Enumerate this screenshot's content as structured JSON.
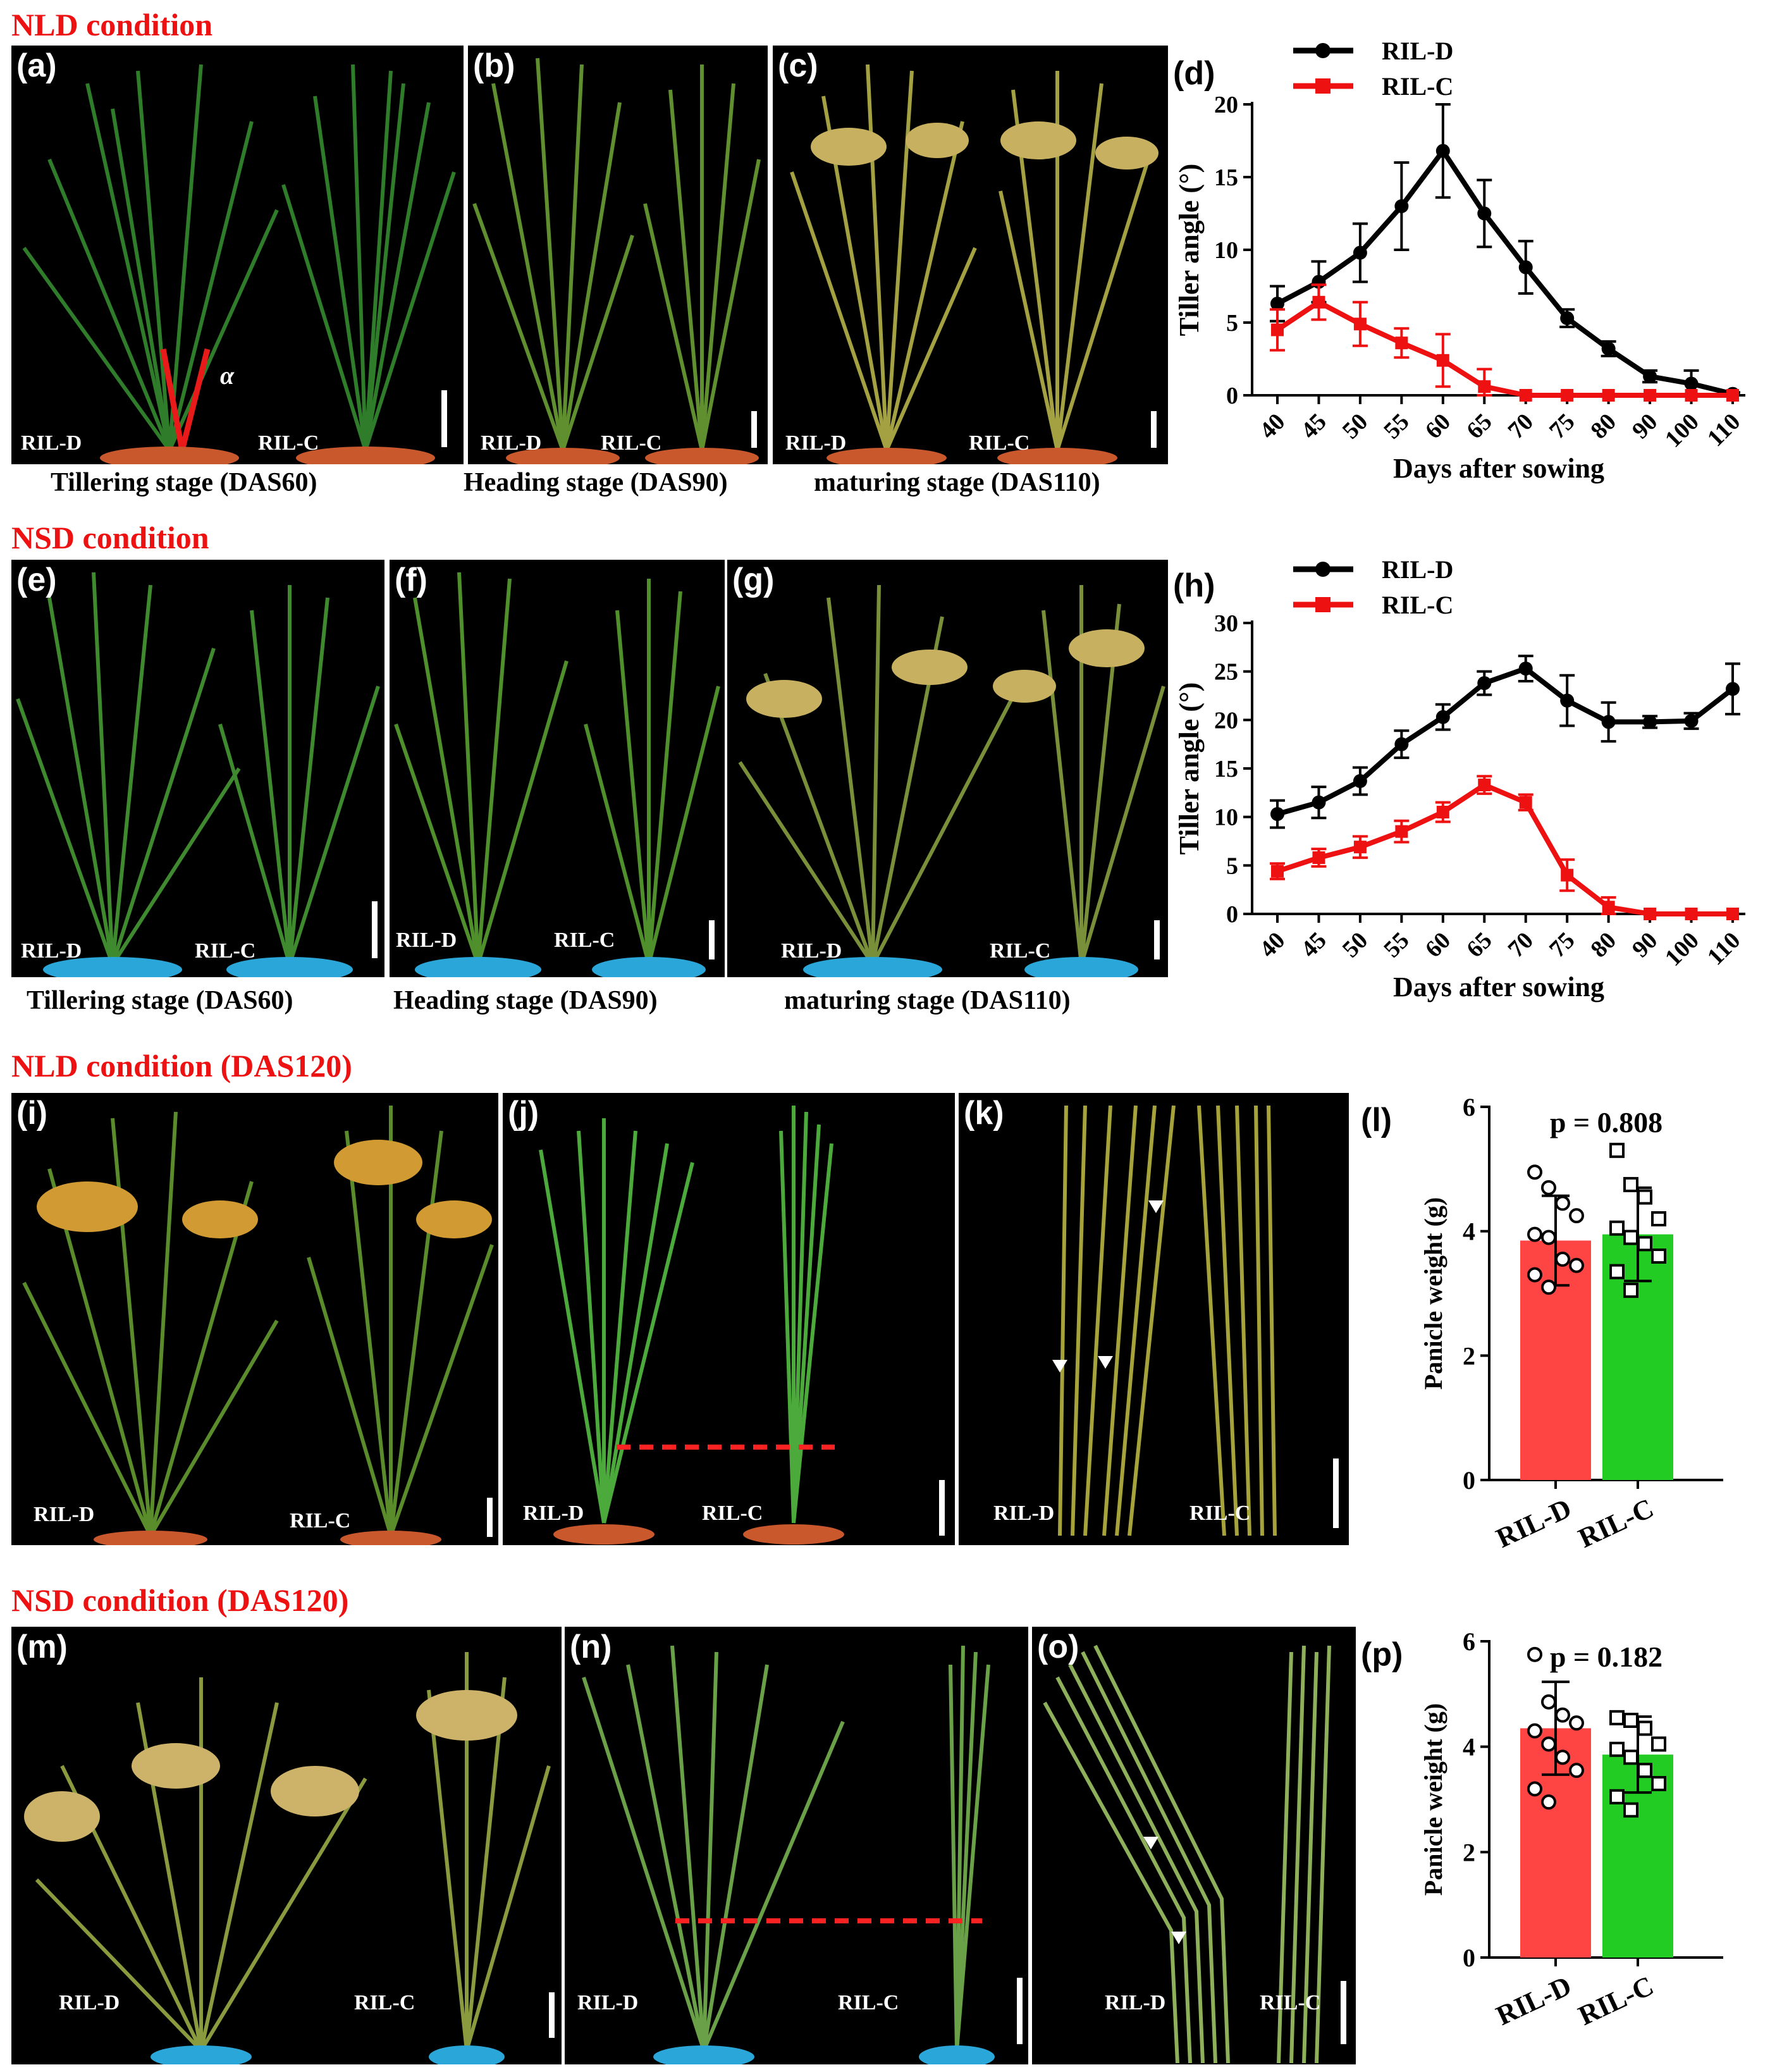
{
  "conditions": {
    "nld": "NLD condition",
    "nsd": "NSD condition",
    "nld120": "NLD condition (DAS120)",
    "nsd120": "NSD condition (DAS120)"
  },
  "panels": {
    "a": "(a)",
    "b": "(b)",
    "c": "(c)",
    "d": "(d)",
    "e": "(e)",
    "f": "(f)",
    "g": "(g)",
    "h": "(h)",
    "i": "(i)",
    "j": "(j)",
    "k": "(k)",
    "l": "(l)",
    "m": "(m)",
    "n": "(n)",
    "o": "(o)",
    "p": "(p)"
  },
  "lines": {
    "d": "RIL-D",
    "c": "RIL-C"
  },
  "alpha": "α",
  "captions": {
    "tillering": "Tillering stage (DAS60)",
    "heading": "Heading stage (DAS90)",
    "maturing": "maturing stage (DAS110)"
  },
  "colors": {
    "ril_d_line": "#000000",
    "ril_c_line": "#ee1111",
    "bar_d": "#ff4444",
    "bar_c": "#22cc22",
    "condition": "#ee1111"
  },
  "chart_data": [
    {
      "id": "d",
      "type": "line",
      "xlabel": "Days after sowing",
      "ylabel": "Tiller angle (°)",
      "categories": [
        "40",
        "45",
        "50",
        "55",
        "60",
        "65",
        "70",
        "75",
        "80",
        "90",
        "100",
        "110"
      ],
      "ylim": [
        0,
        20
      ],
      "yticks": [
        "0",
        "5",
        "10",
        "15",
        "20"
      ],
      "legend_position": "top-left",
      "series": [
        {
          "name": "RIL-D",
          "color": "#000000",
          "marker": "circle",
          "values": [
            6.3,
            7.8,
            9.8,
            13.0,
            16.8,
            12.5,
            8.8,
            5.3,
            3.2,
            1.3,
            0.8,
            0.1
          ],
          "errors": [
            1.2,
            1.4,
            2.0,
            3.0,
            3.2,
            2.3,
            1.8,
            0.6,
            0.5,
            0.4,
            0.9,
            0.1
          ]
        },
        {
          "name": "RIL-C",
          "color": "#ee1111",
          "marker": "square",
          "values": [
            4.5,
            6.4,
            4.9,
            3.6,
            2.4,
            0.6,
            0.0,
            0.0,
            0.0,
            0.0,
            0.0,
            0.0
          ],
          "errors": [
            1.4,
            1.2,
            1.5,
            1.0,
            1.8,
            1.2,
            0.0,
            0.0,
            0.0,
            0.0,
            0.0,
            0.0
          ]
        }
      ]
    },
    {
      "id": "h",
      "type": "line",
      "xlabel": "Days after sowing",
      "ylabel": "Tiller angle (°)",
      "categories": [
        "40",
        "45",
        "50",
        "55",
        "60",
        "65",
        "70",
        "75",
        "80",
        "90",
        "100",
        "110"
      ],
      "ylim": [
        0,
        30
      ],
      "yticks": [
        "0",
        "5",
        "10",
        "15",
        "20",
        "25",
        "30"
      ],
      "legend_position": "top-left",
      "series": [
        {
          "name": "RIL-D",
          "color": "#000000",
          "marker": "circle",
          "values": [
            10.3,
            11.5,
            13.7,
            17.5,
            20.3,
            23.8,
            25.3,
            22.0,
            19.8,
            19.8,
            19.9,
            23.2
          ],
          "errors": [
            1.4,
            1.6,
            1.4,
            1.4,
            1.3,
            1.2,
            1.3,
            2.6,
            2.0,
            0.6,
            0.8,
            2.6
          ]
        },
        {
          "name": "RIL-C",
          "color": "#ee1111",
          "marker": "square",
          "values": [
            4.4,
            5.8,
            6.9,
            8.5,
            10.5,
            13.3,
            11.5,
            4.0,
            0.7,
            0.0,
            0.0,
            0.0
          ],
          "errors": [
            0.8,
            0.9,
            1.1,
            1.1,
            1.0,
            0.9,
            0.8,
            1.6,
            1.0,
            0.0,
            0.0,
            0.0
          ]
        }
      ]
    },
    {
      "id": "l",
      "type": "bar",
      "ylabel": "Panicle weight (g)",
      "annotation": "p = 0.808",
      "categories": [
        "RIL-D",
        "RIL-C"
      ],
      "ylim": [
        0,
        6
      ],
      "yticks": [
        "0",
        "2",
        "4",
        "6"
      ],
      "values": [
        3.85,
        3.95
      ],
      "errors": [
        0.72,
        0.75
      ],
      "points": [
        [
          4.95,
          4.7,
          4.45,
          4.25,
          3.95,
          3.9,
          3.55,
          3.45,
          3.3,
          3.1
        ],
        [
          5.3,
          4.75,
          4.55,
          4.2,
          4.05,
          3.9,
          3.8,
          3.6,
          3.35,
          3.05
        ]
      ]
    },
    {
      "id": "p",
      "type": "bar",
      "ylabel": "Panicle weight (g)",
      "annotation": "p = 0.182",
      "categories": [
        "RIL-D",
        "RIL-C"
      ],
      "ylim": [
        0,
        6
      ],
      "yticks": [
        "0",
        "2",
        "4",
        "6"
      ],
      "values": [
        4.35,
        3.85
      ],
      "errors": [
        0.88,
        0.72
      ],
      "points": [
        [
          5.75,
          4.85,
          4.6,
          4.45,
          4.3,
          4.05,
          3.8,
          3.55,
          3.2,
          2.95
        ],
        [
          4.55,
          4.5,
          4.35,
          4.05,
          3.95,
          3.8,
          3.55,
          3.3,
          3.05,
          2.8
        ]
      ]
    }
  ]
}
